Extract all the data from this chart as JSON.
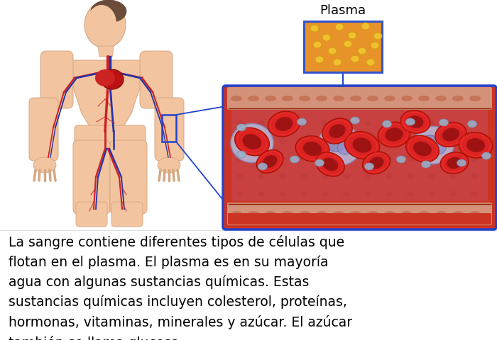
{
  "text_body": "La sangre contiene diferentes tipos de células que\nflotan en el plasma. El plasma es en su mayoría\nagua con algunas sustancias químicas. Estas\nsustancias químicas incluyen colesterol, proteínas,\nhormonas, vitaminas, minerales y azúcar. El azúcar\ntambién se llama glucosa.",
  "plasma_label": "Plasma",
  "bg_color": "#ffffff",
  "text_color": "#000000",
  "text_fontsize": 13.5,
  "plasma_label_fontsize": 13,
  "plasma_box_color": "#E8922A",
  "plasma_box_outline": "#3355CC",
  "vessel_outline": "#2244CC",
  "vessel_wall_outer": "#CC3322",
  "vessel_wall_inner": "#D4A090",
  "vessel_bg": "#D87060",
  "red_cell_color": "#CC1111",
  "white_cell_color": "#C0C0E0",
  "platelet_color": "#A0B0D0"
}
